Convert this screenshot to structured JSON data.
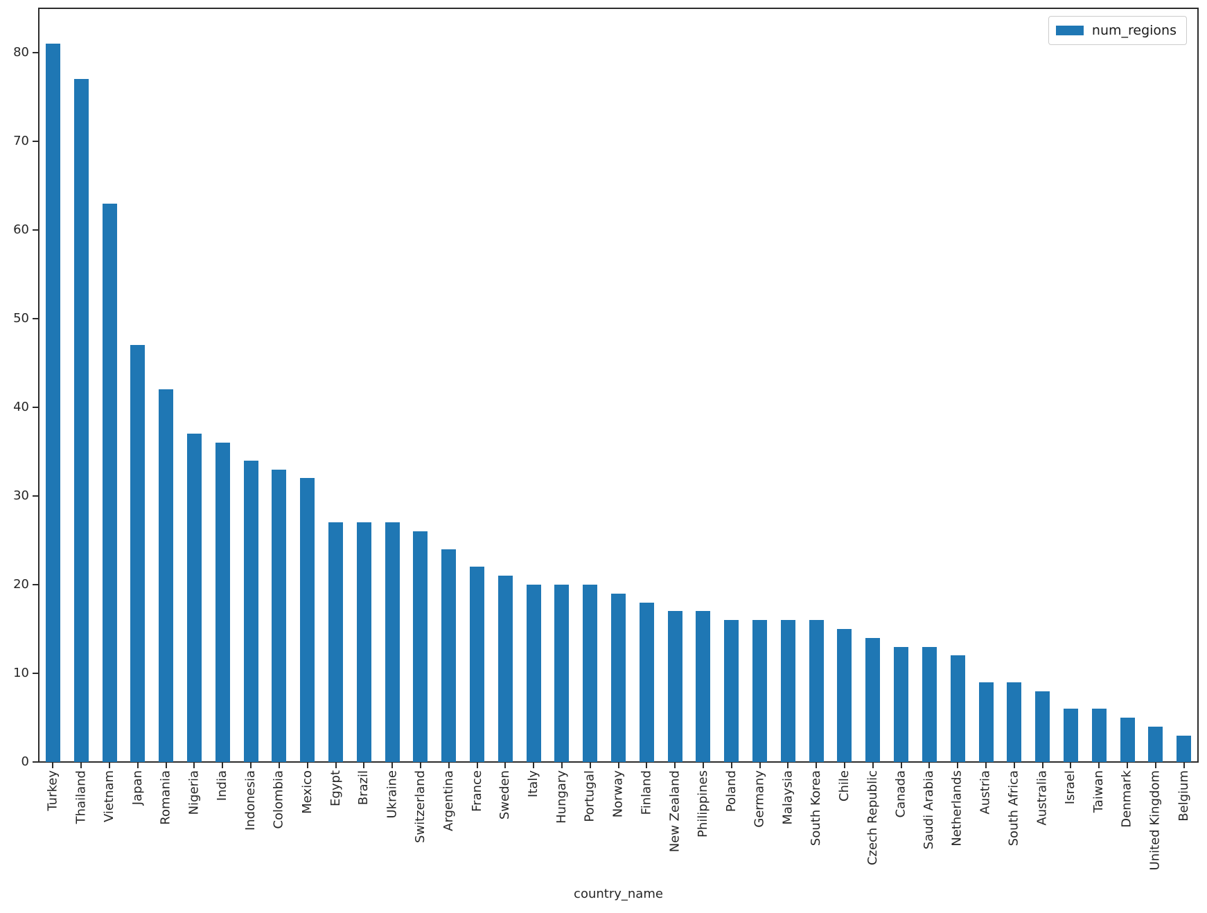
{
  "figure": {
    "background": "#ffffff",
    "xlabel": "country_name"
  },
  "legend": {
    "label": "num_regions",
    "swatch_color": "#1f77b4",
    "position": "upper right"
  },
  "chart_data": {
    "type": "bar",
    "series_name": "num_regions",
    "title": "",
    "xlabel": "country_name",
    "ylabel": "",
    "ylim": [
      0,
      85
    ],
    "yticks": [
      0,
      10,
      20,
      30,
      40,
      50,
      60,
      70,
      80
    ],
    "grid": false,
    "legend_position": "upper right",
    "bar_color": "#1f77b4",
    "axis_color": "#2b2b2b",
    "x_tick_rotation": 90,
    "categories": [
      "Turkey",
      "Thailand",
      "Vietnam",
      "Japan",
      "Romania",
      "Nigeria",
      "India",
      "Indonesia",
      "Colombia",
      "Mexico",
      "Egypt",
      "Brazil",
      "Ukraine",
      "Switzerland",
      "Argentina",
      "France",
      "Sweden",
      "Italy",
      "Hungary",
      "Portugal",
      "Norway",
      "Finland",
      "New Zealand",
      "Philippines",
      "Poland",
      "Germany",
      "Malaysia",
      "South Korea",
      "Chile",
      "Czech Republic",
      "Canada",
      "Saudi Arabia",
      "Netherlands",
      "Austria",
      "South Africa",
      "Australia",
      "Israel",
      "Taiwan",
      "Denmark",
      "United Kingdom",
      "Belgium"
    ],
    "values": [
      81,
      77,
      63,
      47,
      42,
      37,
      36,
      34,
      33,
      32,
      27,
      27,
      27,
      26,
      24,
      22,
      21,
      20,
      20,
      20,
      19,
      18,
      17,
      17,
      16,
      16,
      16,
      16,
      15,
      14,
      13,
      13,
      12,
      9,
      9,
      8,
      6,
      6,
      5,
      4,
      3
    ]
  }
}
